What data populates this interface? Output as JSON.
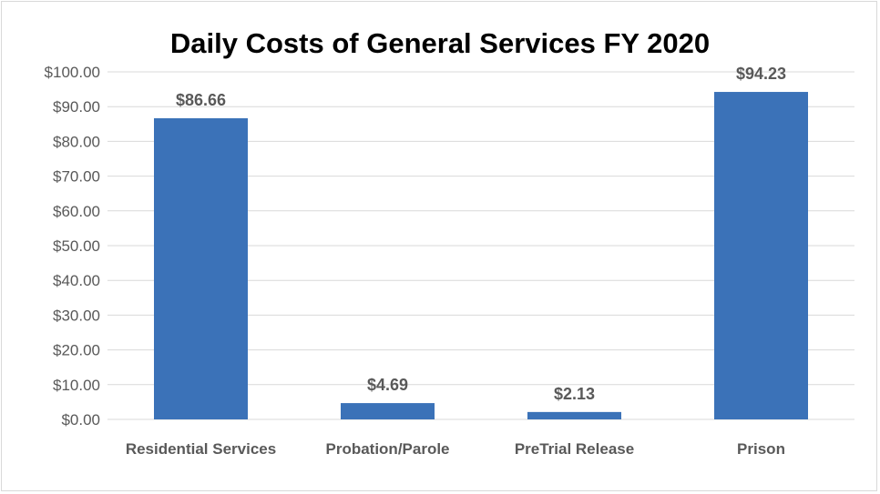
{
  "chart_data": {
    "type": "bar",
    "title": "Daily Costs of General Services FY 2020",
    "xlabel": "",
    "ylabel": "",
    "categories": [
      "Residential Services",
      "Probation/Parole",
      "PreTrial Release",
      "Prison"
    ],
    "values": [
      86.66,
      4.69,
      2.13,
      94.23
    ],
    "data_labels": [
      "$86.66",
      "$4.69",
      "$2.13",
      "$94.23"
    ],
    "yticks": [
      "$0.00",
      "$10.00",
      "$20.00",
      "$30.00",
      "$40.00",
      "$50.00",
      "$60.00",
      "$70.00",
      "$80.00",
      "$90.00",
      "$100.00"
    ],
    "ylim": [
      0,
      100
    ],
    "grid": true,
    "legend": "none",
    "bar_color": "#3b72b8"
  }
}
